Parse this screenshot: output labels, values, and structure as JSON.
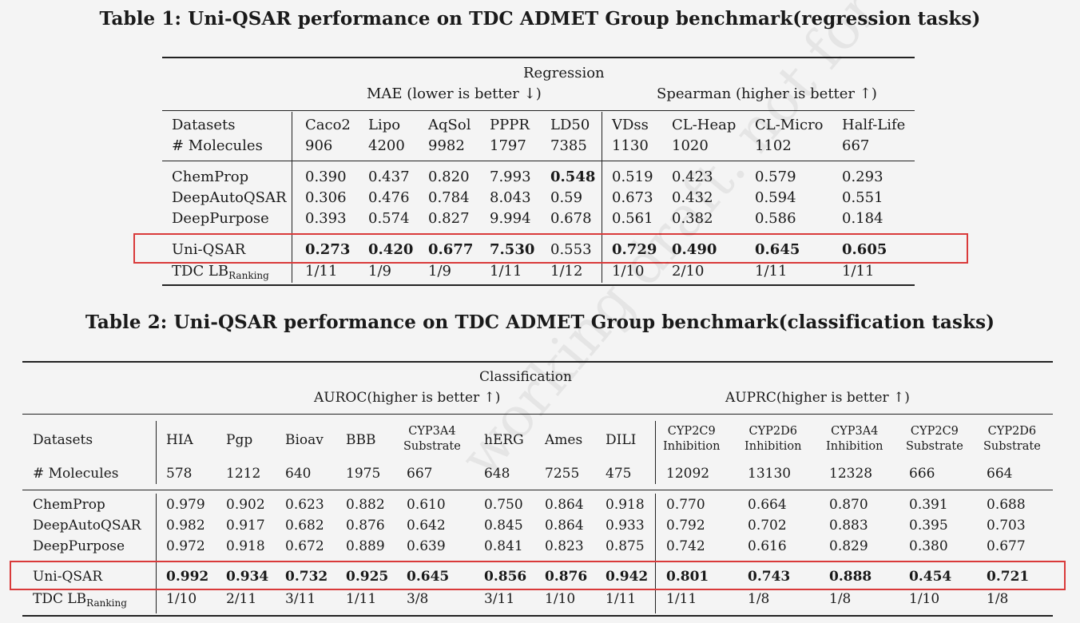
{
  "table1": {
    "caption": "Table 1: Uni-QSAR performance on TDC ADMET Group benchmark(regression tasks)",
    "group": "Regression",
    "metric_left": "MAE (lower is better ↓)",
    "metric_right": "Spearman (higher is better ↑)",
    "datasets_label": "Datasets",
    "molecules_label": "# Molecules",
    "columns": [
      {
        "name": "Caco2",
        "count": "906"
      },
      {
        "name": "Lipo",
        "count": "4200"
      },
      {
        "name": "AqSol",
        "count": "9982"
      },
      {
        "name": "PPPR",
        "count": "1797"
      },
      {
        "name": "LD50",
        "count": "7385"
      },
      {
        "name": "VDss",
        "count": "1130"
      },
      {
        "name": "CL-Heap",
        "count": "1020"
      },
      {
        "name": "CL-Micro",
        "count": "1102"
      },
      {
        "name": "Half-Life",
        "count": "667"
      }
    ],
    "rows": [
      {
        "name": "ChemProp",
        "values": [
          "0.390",
          "0.437",
          "0.820",
          "7.993",
          "0.548",
          "0.519",
          "0.423",
          "0.579",
          "0.293"
        ],
        "bold": [
          4
        ]
      },
      {
        "name": "DeepAutoQSAR",
        "values": [
          "0.306",
          "0.476",
          "0.784",
          "8.043",
          "0.59",
          "0.673",
          "0.432",
          "0.594",
          "0.551"
        ],
        "bold": []
      },
      {
        "name": "DeepPurpose",
        "values": [
          "0.393",
          "0.574",
          "0.827",
          "9.994",
          "0.678",
          "0.561",
          "0.382",
          "0.586",
          "0.184"
        ],
        "bold": []
      },
      {
        "name": "Uni-QSAR",
        "values": [
          "0.273",
          "0.420",
          "0.677",
          "7.530",
          "0.553",
          "0.729",
          "0.490",
          "0.645",
          "0.605"
        ],
        "bold": [
          0,
          1,
          2,
          3,
          5,
          6,
          7,
          8
        ]
      }
    ],
    "ranking": {
      "name_main": "TDC LB",
      "name_sub": "Ranking",
      "values": [
        "1/11",
        "1/9",
        "1/9",
        "1/11",
        "1/12",
        "1/10",
        "2/10",
        "1/11",
        "1/11"
      ]
    }
  },
  "table2": {
    "caption": "Table 2: Uni-QSAR performance on TDC ADMET Group benchmark(classification tasks)",
    "group": "Classification",
    "metric_left": "AUROC(higher is better ↑)",
    "metric_right": "AUPRC(higher is better ↑)",
    "datasets_label": "Datasets",
    "molecules_label": "# Molecules",
    "columns": [
      {
        "name": "HIA",
        "count": "578"
      },
      {
        "name": "Pgp",
        "count": "1212"
      },
      {
        "name": "Bioav",
        "count": "640"
      },
      {
        "name": "BBB",
        "count": "1975"
      },
      {
        "name": "CYP3A4",
        "name2": "Substrate",
        "count": "667"
      },
      {
        "name": "hERG",
        "count": "648"
      },
      {
        "name": "Ames",
        "count": "7255"
      },
      {
        "name": "DILI",
        "count": "475"
      },
      {
        "name": "CYP2C9",
        "name2": "Inhibition",
        "count": "12092"
      },
      {
        "name": "CYP2D6",
        "name2": "Inhibition",
        "count": "13130"
      },
      {
        "name": "CYP3A4",
        "name2": "Inhibition",
        "count": "12328"
      },
      {
        "name": "CYP2C9",
        "name2": "Substrate",
        "count": "666"
      },
      {
        "name": "CYP2D6",
        "name2": "Substrate",
        "count": "664"
      }
    ],
    "rows": [
      {
        "name": "ChemProp",
        "values": [
          "0.979",
          "0.902",
          "0.623",
          "0.882",
          "0.610",
          "0.750",
          "0.864",
          "0.918",
          "0.770",
          "0.664",
          "0.870",
          "0.391",
          "0.688"
        ],
        "bold": []
      },
      {
        "name": "DeepAutoQSAR",
        "values": [
          "0.982",
          "0.917",
          "0.682",
          "0.876",
          "0.642",
          "0.845",
          "0.864",
          "0.933",
          "0.792",
          "0.702",
          "0.883",
          "0.395",
          "0.703"
        ],
        "bold": []
      },
      {
        "name": "DeepPurpose",
        "values": [
          "0.972",
          "0.918",
          "0.672",
          "0.889",
          "0.639",
          "0.841",
          "0.823",
          "0.875",
          "0.742",
          "0.616",
          "0.829",
          "0.380",
          "0.677"
        ],
        "bold": []
      },
      {
        "name": "Uni-QSAR",
        "values": [
          "0.992",
          "0.934",
          "0.732",
          "0.925",
          "0.645",
          "0.856",
          "0.876",
          "0.942",
          "0.801",
          "0.743",
          "0.888",
          "0.454",
          "0.721"
        ],
        "bold": [
          0,
          1,
          2,
          3,
          4,
          5,
          6,
          7,
          8,
          9,
          10,
          11,
          12
        ]
      }
    ],
    "ranking": {
      "name_main": "TDC LB",
      "name_sub": "Ranking",
      "values": [
        "1/10",
        "2/11",
        "3/11",
        "1/11",
        "3/8",
        "3/11",
        "1/10",
        "1/11",
        "1/11",
        "1/8",
        "1/8",
        "1/10",
        "1/8"
      ]
    }
  }
}
